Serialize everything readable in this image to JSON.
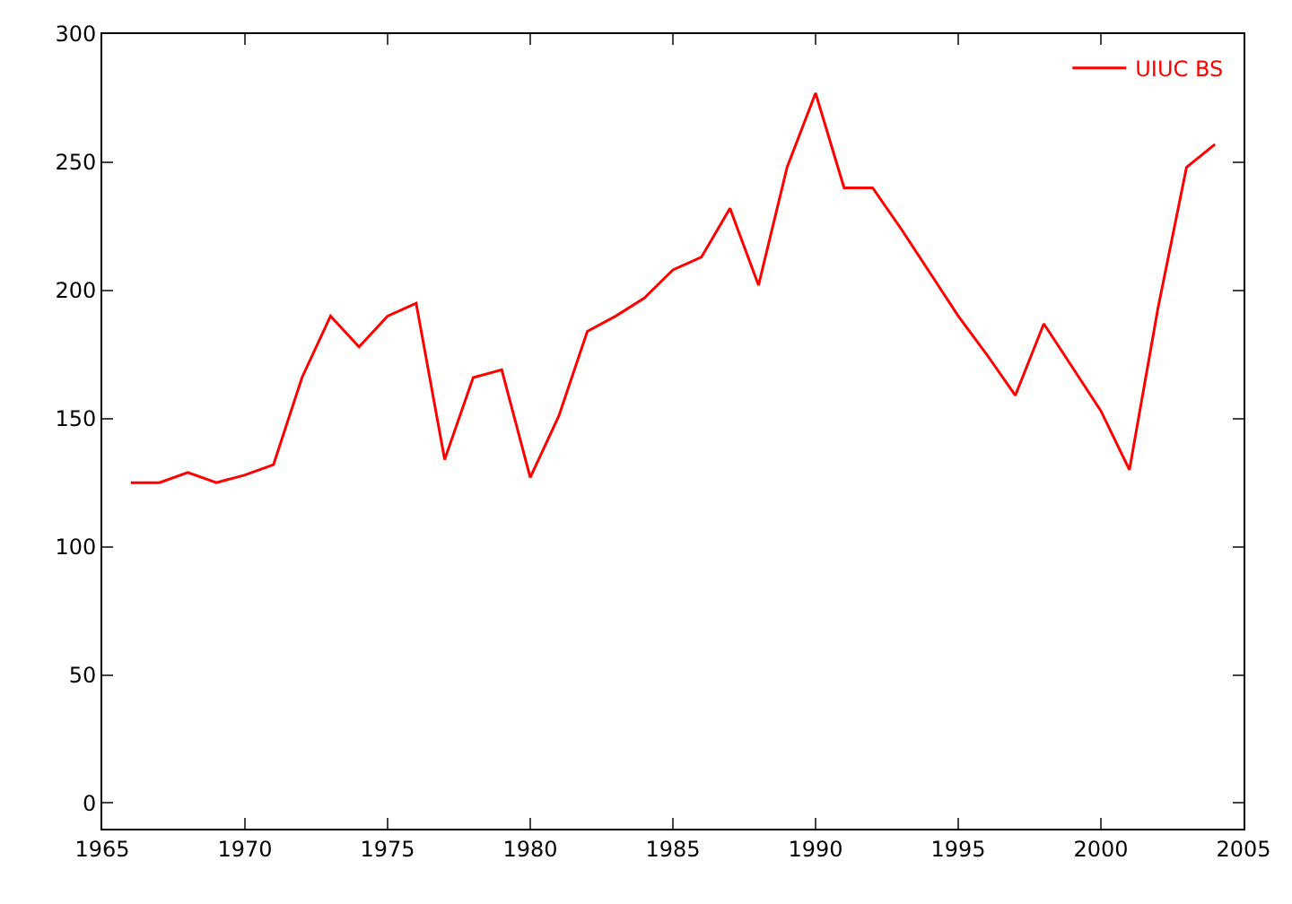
{
  "chart_data": {
    "type": "line",
    "x": [
      1966,
      1967,
      1968,
      1969,
      1970,
      1971,
      1972,
      1973,
      1974,
      1975,
      1976,
      1977,
      1978,
      1979,
      1980,
      1981,
      1982,
      1983,
      1984,
      1985,
      1986,
      1987,
      1988,
      1989,
      1990,
      1991,
      1992,
      1993,
      1994,
      1995,
      1996,
      1997,
      1998,
      1999,
      2000,
      2001,
      2002,
      2003,
      2004
    ],
    "series": [
      {
        "name": "UIUC BS",
        "color": "#ff0000",
        "values": [
          125,
          125,
          129,
          125,
          128,
          132,
          166,
          190,
          178,
          190,
          195,
          134,
          166,
          169,
          127,
          151,
          184,
          190,
          197,
          208,
          213,
          232,
          202,
          248,
          277,
          240,
          240,
          224,
          207,
          190,
          175,
          159,
          187,
          170,
          153,
          130,
          193,
          248,
          257
        ]
      }
    ],
    "xlim": [
      1965,
      2005
    ],
    "xticks": [
      1965,
      1970,
      1975,
      1980,
      1985,
      1990,
      1995,
      2000,
      2005
    ],
    "ylim": [
      -10,
      300
    ],
    "yticks": [
      0,
      50,
      100,
      150,
      200,
      250,
      300
    ],
    "legend": "top right",
    "marker": "none",
    "line_style": "solid"
  }
}
